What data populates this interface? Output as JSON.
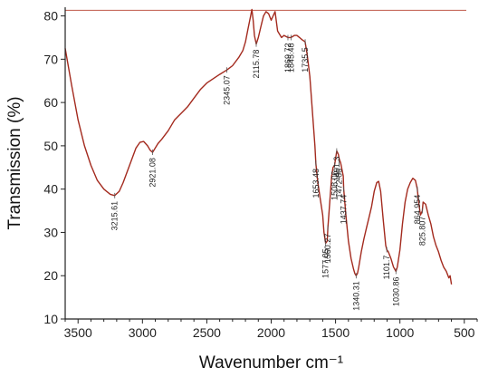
{
  "chart_data": {
    "type": "line",
    "xlabel": "Wavenumber cm⁻¹",
    "ylabel": "Transmission (%)",
    "xlim": [
      3600,
      400
    ],
    "ylim": [
      10,
      82
    ],
    "x_ticks": [
      3500,
      3000,
      2500,
      2000,
      1500,
      1000,
      500
    ],
    "y_ticks": [
      10,
      20,
      30,
      40,
      50,
      60,
      70,
      80
    ],
    "grid": false,
    "line_color": "#a32a1e",
    "reference_line": {
      "y": 81.3,
      "color": "#c05a4a"
    },
    "series": [
      {
        "x": [
          3600,
          3550,
          3500,
          3450,
          3400,
          3350,
          3300,
          3250,
          3215,
          3180,
          3150,
          3100,
          3050,
          3020,
          2990,
          2960,
          2940,
          2921,
          2900,
          2880,
          2850,
          2800,
          2750,
          2700,
          2650,
          2600,
          2550,
          2500,
          2450,
          2400,
          2345,
          2300,
          2250,
          2220,
          2200,
          2180,
          2160,
          2150,
          2140,
          2130,
          2116,
          2100,
          2080,
          2060,
          2040,
          2020,
          2000,
          1985,
          1970,
          1950,
          1920,
          1900,
          1870,
          1846,
          1820,
          1800,
          1780,
          1760,
          1736,
          1720,
          1700,
          1680,
          1660,
          1653,
          1640,
          1620,
          1600,
          1590,
          1577,
          1565,
          1560,
          1550,
          1540,
          1530,
          1520,
          1508,
          1500,
          1491,
          1485,
          1478,
          1472,
          1460,
          1440,
          1437,
          1420,
          1400,
          1380,
          1360,
          1350,
          1340,
          1330,
          1320,
          1300,
          1280,
          1260,
          1240,
          1220,
          1200,
          1180,
          1165,
          1150,
          1130,
          1110,
          1102,
          1090,
          1070,
          1050,
          1040,
          1031,
          1020,
          1000,
          980,
          960,
          940,
          920,
          900,
          880,
          865,
          860,
          850,
          840,
          826,
          820,
          800,
          780,
          760,
          740,
          720,
          700,
          680,
          660,
          640,
          620,
          610,
          600
        ],
        "y": [
          72.5,
          64,
          56,
          50,
          45.5,
          42,
          40,
          38.8,
          38.5,
          39.5,
          41.5,
          45.5,
          49.5,
          50.8,
          51,
          50,
          49,
          48.5,
          49.5,
          50.5,
          51.5,
          53.5,
          56,
          57.5,
          59,
          61,
          63,
          64.5,
          65.5,
          66.5,
          67.5,
          68.5,
          70.5,
          72,
          74,
          77,
          80,
          81.5,
          79,
          75.5,
          73.5,
          75,
          77.5,
          80,
          81,
          80.5,
          79,
          80,
          81,
          76.5,
          75,
          75.5,
          75,
          75,
          75.5,
          75.5,
          75,
          74.5,
          74,
          71,
          66,
          58,
          50,
          46,
          42,
          38,
          34,
          30,
          27.5,
          28,
          31,
          35,
          39,
          43,
          45,
          45.5,
          47,
          48.8,
          48.5,
          48,
          47,
          46,
          43,
          40,
          34,
          28,
          24,
          21.5,
          20.5,
          20,
          20.5,
          22,
          25.5,
          28.5,
          31,
          33.5,
          36,
          39.5,
          41.5,
          41.8,
          39.5,
          33,
          27,
          26,
          25.5,
          24,
          22,
          21.5,
          21,
          22,
          26,
          32,
          37,
          40,
          41.5,
          42.5,
          42,
          40,
          38.5,
          36,
          34,
          35,
          37,
          36.5,
          34,
          32,
          29,
          27,
          25.5,
          23.5,
          22,
          21,
          19.5,
          20,
          18
        ]
      }
    ],
    "annotations": [
      {
        "label": "3215.61",
        "x": 3215,
        "y": 38.5
      },
      {
        "label": "2921.08",
        "x": 2921,
        "y": 48.5
      },
      {
        "label": "2345.07",
        "x": 2345,
        "y": 67.5
      },
      {
        "label": "2115.78",
        "x": 2116,
        "y": 73.5
      },
      {
        "label": "1869.72",
        "x": 1870,
        "y": 75
      },
      {
        "label": "1845.48",
        "x": 1846,
        "y": 75
      },
      {
        "label": "1735.5",
        "x": 1736,
        "y": 74
      },
      {
        "label": "1653.48",
        "x": 1653,
        "y": 46
      },
      {
        "label": "1577.05",
        "x": 1577,
        "y": 27.5
      },
      {
        "label": "1560.27",
        "x": 1560,
        "y": 31
      },
      {
        "label": "1508.06",
        "x": 1508,
        "y": 45.5
      },
      {
        "label": "1491.3",
        "x": 1491,
        "y": 48.8
      },
      {
        "label": "1472.66",
        "x": 1472,
        "y": 46
      },
      {
        "label": "1437.74",
        "x": 1437,
        "y": 40
      },
      {
        "label": "1340.31",
        "x": 1340,
        "y": 20
      },
      {
        "label": "1101.7",
        "x": 1102,
        "y": 26
      },
      {
        "label": "1030.86",
        "x": 1031,
        "y": 21
      },
      {
        "label": "864.954",
        "x": 865,
        "y": 40
      },
      {
        "label": "825.807",
        "x": 826,
        "y": 35
      }
    ]
  }
}
